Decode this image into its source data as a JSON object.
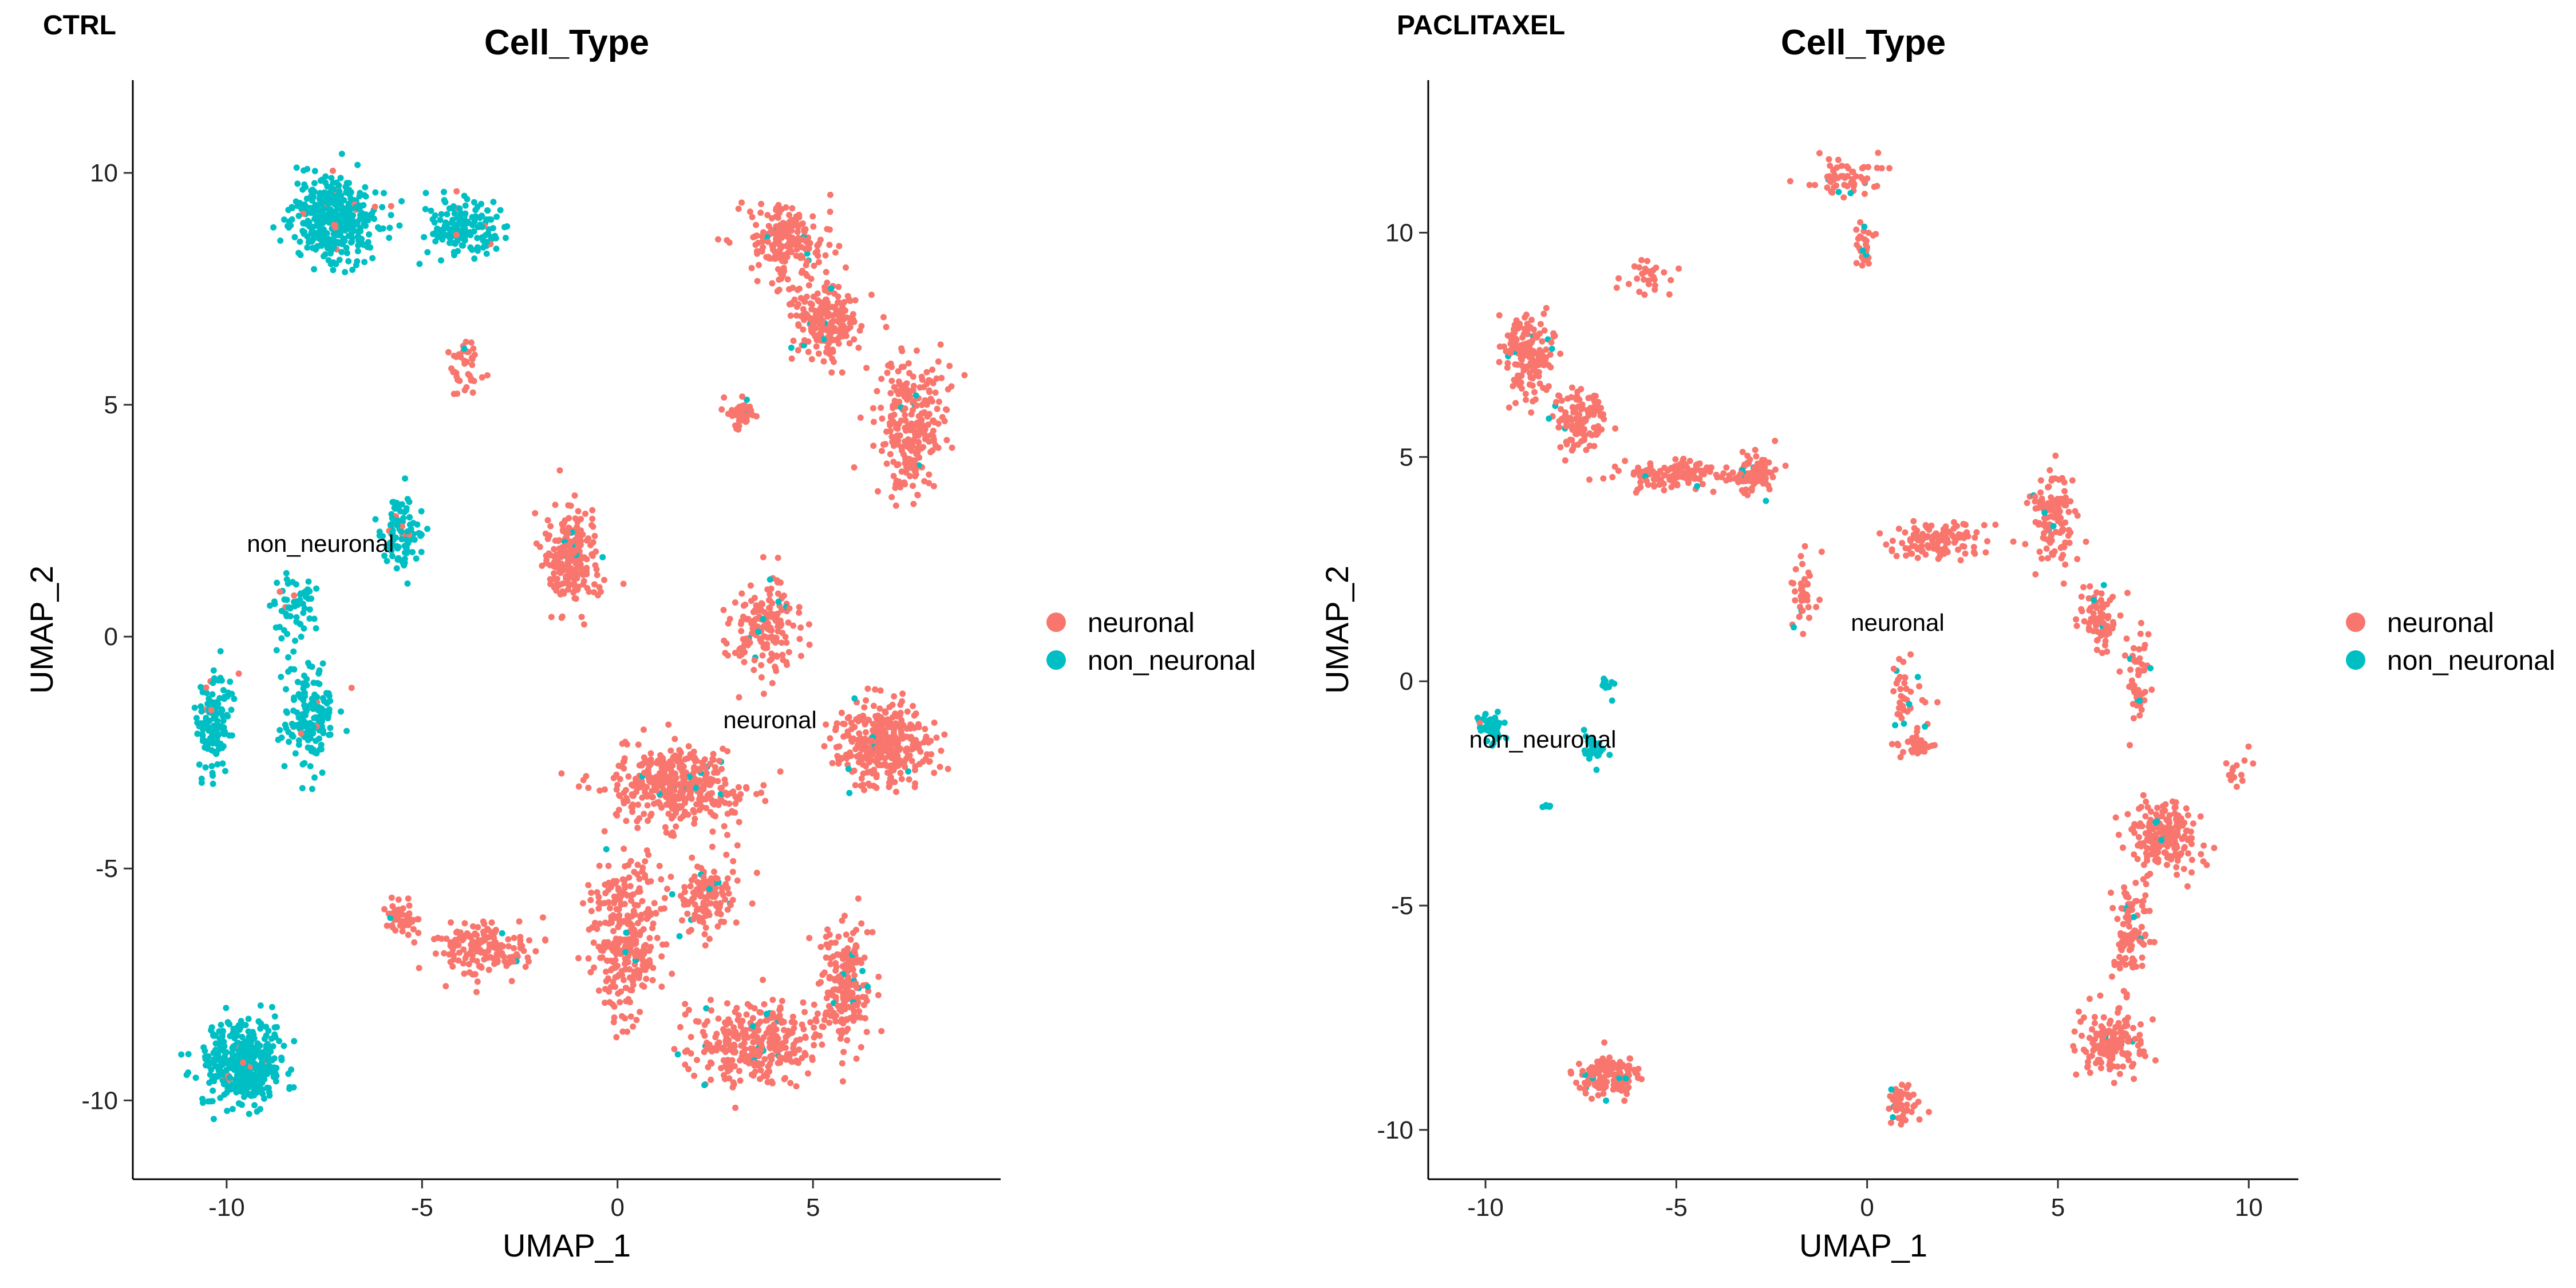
{
  "chart_data": [
    {
      "type": "scatter",
      "panel_tag": "CTRL",
      "title": "Cell_Type",
      "xlabel": "UMAP_1",
      "ylabel": "UMAP_2",
      "xlim": [
        -12.4,
        9.8
      ],
      "ylim": [
        -11.7,
        12.0
      ],
      "xticks": [
        -10,
        -5,
        0,
        5
      ],
      "yticks": [
        -10,
        -5,
        0,
        5,
        10
      ],
      "grid": false,
      "legend_position": "right",
      "legend": [
        {
          "name": "neuronal",
          "color": "#F8766D"
        },
        {
          "name": "non_neuronal",
          "color": "#00BFC4"
        }
      ],
      "labels": [
        {
          "text": "non_neuronal",
          "x": -7.6,
          "y": 2.0
        },
        {
          "text": "neuronal",
          "x": 3.9,
          "y": -1.8
        }
      ],
      "clusters": [
        {
          "category": "non_neuronal",
          "cx": -7.2,
          "cy": 9.0,
          "sx": 1.0,
          "sy": 0.8,
          "n": 420
        },
        {
          "category": "non_neuronal",
          "cx": -4.0,
          "cy": 8.8,
          "sx": 0.9,
          "sy": 0.5,
          "n": 170
        },
        {
          "category": "non_neuronal",
          "cx": -9.6,
          "cy": -9.2,
          "sx": 0.9,
          "sy": 0.8,
          "n": 420
        },
        {
          "category": "non_neuronal",
          "cx": -10.3,
          "cy": -1.8,
          "sx": 0.4,
          "sy": 1.1,
          "n": 140
        },
        {
          "category": "non_neuronal",
          "cx": -7.9,
          "cy": -1.8,
          "sx": 0.6,
          "sy": 1.1,
          "n": 160
        },
        {
          "category": "non_neuronal",
          "cx": -5.5,
          "cy": 2.2,
          "sx": 0.5,
          "sy": 0.8,
          "n": 100
        },
        {
          "category": "non_neuronal",
          "cx": -8.2,
          "cy": 0.6,
          "sx": 0.6,
          "sy": 0.7,
          "n": 60
        },
        {
          "category": "neuronal",
          "cx": -3.9,
          "cy": 5.8,
          "sx": 0.4,
          "sy": 0.6,
          "n": 40
        },
        {
          "category": "neuronal",
          "cx": -1.2,
          "cy": 1.7,
          "sx": 0.6,
          "sy": 1.0,
          "n": 220
        },
        {
          "category": "neuronal",
          "cx": 4.3,
          "cy": 8.5,
          "sx": 0.9,
          "sy": 0.7,
          "n": 200
        },
        {
          "category": "neuronal",
          "cx": 5.3,
          "cy": 6.8,
          "sx": 0.9,
          "sy": 0.8,
          "n": 200
        },
        {
          "category": "neuronal",
          "cx": 7.5,
          "cy": 4.5,
          "sx": 0.8,
          "sy": 1.4,
          "n": 250
        },
        {
          "category": "neuronal",
          "cx": 3.2,
          "cy": 4.8,
          "sx": 0.4,
          "sy": 0.3,
          "n": 50
        },
        {
          "category": "neuronal",
          "cx": 3.8,
          "cy": 0.2,
          "sx": 0.8,
          "sy": 1.0,
          "n": 180
        },
        {
          "category": "neuronal",
          "cx": 6.8,
          "cy": -2.3,
          "sx": 1.1,
          "sy": 0.8,
          "n": 340
        },
        {
          "category": "neuronal",
          "cx": 1.5,
          "cy": -3.2,
          "sx": 1.6,
          "sy": 0.8,
          "n": 400
        },
        {
          "category": "neuronal",
          "cx": 0.2,
          "cy": -6.5,
          "sx": 0.8,
          "sy": 1.6,
          "n": 300
        },
        {
          "category": "neuronal",
          "cx": 3.5,
          "cy": -8.8,
          "sx": 1.6,
          "sy": 0.8,
          "n": 320
        },
        {
          "category": "neuronal",
          "cx": 5.8,
          "cy": -7.5,
          "sx": 0.6,
          "sy": 1.2,
          "n": 200
        },
        {
          "category": "neuronal",
          "cx": -3.5,
          "cy": -6.7,
          "sx": 1.2,
          "sy": 0.5,
          "n": 160
        },
        {
          "category": "neuronal",
          "cx": -5.5,
          "cy": -6.1,
          "sx": 0.4,
          "sy": 0.4,
          "n": 50
        },
        {
          "category": "neuronal",
          "cx": 2.3,
          "cy": -5.6,
          "sx": 0.7,
          "sy": 0.7,
          "n": 140
        }
      ]
    },
    {
      "type": "scatter",
      "panel_tag": "PACLITAXEL",
      "title": "Cell_Type",
      "xlabel": "UMAP_1",
      "ylabel": "UMAP_2",
      "xlim": [
        -11.5,
        11.3
      ],
      "ylim": [
        -11.1,
        13.4
      ],
      "xticks": [
        -10,
        -5,
        0,
        5,
        10
      ],
      "yticks": [
        -10,
        -5,
        0,
        5,
        10
      ],
      "grid": false,
      "legend_position": "right",
      "legend": [
        {
          "name": "neuronal",
          "color": "#F8766D"
        },
        {
          "name": "non_neuronal",
          "color": "#00BFC4"
        }
      ],
      "labels": [
        {
          "text": "neuronal",
          "x": 0.8,
          "y": 1.3
        },
        {
          "text": "non_neuronal",
          "x": -8.5,
          "y": -1.3
        }
      ],
      "clusters": [
        {
          "category": "neuronal",
          "cx": -8.9,
          "cy": 7.3,
          "sx": 0.6,
          "sy": 0.8,
          "n": 160
        },
        {
          "category": "neuronal",
          "cx": -7.5,
          "cy": 5.8,
          "sx": 0.7,
          "sy": 0.6,
          "n": 120
        },
        {
          "category": "neuronal",
          "cx": -5.2,
          "cy": 4.6,
          "sx": 1.2,
          "sy": 0.3,
          "n": 120
        },
        {
          "category": "neuronal",
          "cx": -3.0,
          "cy": 4.6,
          "sx": 0.6,
          "sy": 0.4,
          "n": 100
        },
        {
          "category": "neuronal",
          "cx": -5.8,
          "cy": 9.0,
          "sx": 0.6,
          "sy": 0.3,
          "n": 30
        },
        {
          "category": "neuronal",
          "cx": -1.7,
          "cy": 2.0,
          "sx": 0.3,
          "sy": 0.7,
          "n": 40
        },
        {
          "category": "neuronal",
          "cx": -0.5,
          "cy": 11.3,
          "sx": 0.9,
          "sy": 0.4,
          "n": 60
        },
        {
          "category": "neuronal",
          "cx": -0.1,
          "cy": 9.6,
          "sx": 0.2,
          "sy": 0.6,
          "n": 30
        },
        {
          "category": "neuronal",
          "cx": 1.8,
          "cy": 3.1,
          "sx": 1.2,
          "sy": 0.4,
          "n": 120
        },
        {
          "category": "neuronal",
          "cx": 4.9,
          "cy": 3.6,
          "sx": 0.6,
          "sy": 1.0,
          "n": 120
        },
        {
          "category": "neuronal",
          "cx": 6.1,
          "cy": 1.4,
          "sx": 0.4,
          "sy": 0.6,
          "n": 70
        },
        {
          "category": "neuronal",
          "cx": 1.0,
          "cy": -0.5,
          "sx": 0.5,
          "sy": 1.0,
          "n": 50
        },
        {
          "category": "neuronal",
          "cx": 1.4,
          "cy": -1.4,
          "sx": 0.3,
          "sy": 0.3,
          "n": 25
        },
        {
          "category": "neuronal",
          "cx": 7.1,
          "cy": 0.2,
          "sx": 0.3,
          "sy": 1.0,
          "n": 50
        },
        {
          "category": "neuronal",
          "cx": 7.8,
          "cy": -3.5,
          "sx": 0.8,
          "sy": 0.7,
          "n": 200
        },
        {
          "category": "neuronal",
          "cx": 6.9,
          "cy": -5.6,
          "sx": 0.4,
          "sy": 1.0,
          "n": 100
        },
        {
          "category": "neuronal",
          "cx": 6.4,
          "cy": -8.1,
          "sx": 0.8,
          "sy": 0.6,
          "n": 160
        },
        {
          "category": "neuronal",
          "cx": 9.6,
          "cy": -2.0,
          "sx": 0.3,
          "sy": 0.3,
          "n": 15
        },
        {
          "category": "neuronal",
          "cx": -6.8,
          "cy": -8.8,
          "sx": 0.8,
          "sy": 0.4,
          "n": 160
        },
        {
          "category": "neuronal",
          "cx": 0.9,
          "cy": -9.4,
          "sx": 0.4,
          "sy": 0.4,
          "n": 50
        },
        {
          "category": "non_neuronal",
          "cx": -9.8,
          "cy": -1.0,
          "sx": 0.4,
          "sy": 0.3,
          "n": 45
        },
        {
          "category": "non_neuronal",
          "cx": -7.2,
          "cy": -1.5,
          "sx": 0.25,
          "sy": 0.35,
          "n": 30
        },
        {
          "category": "non_neuronal",
          "cx": -6.8,
          "cy": -0.1,
          "sx": 0.15,
          "sy": 0.2,
          "n": 10
        },
        {
          "category": "non_neuronal",
          "cx": -8.4,
          "cy": -2.8,
          "sx": 0.12,
          "sy": 0.1,
          "n": 6
        }
      ]
    }
  ]
}
